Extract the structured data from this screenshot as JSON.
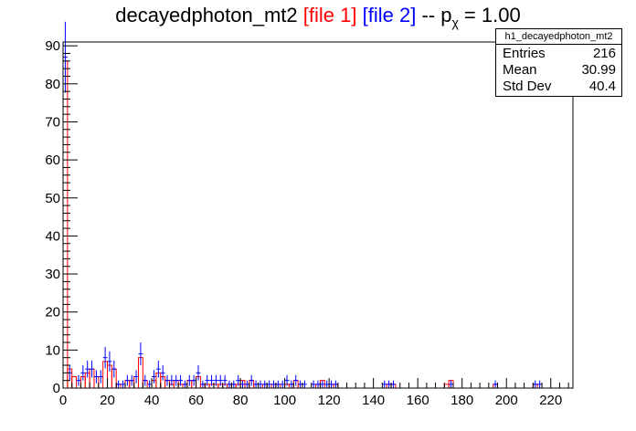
{
  "title": {
    "name": "decayedphoton_mt2",
    "file1": "[file 1]",
    "file2": "[file 2]",
    "tail_prefix": "-- p",
    "tail_sub": "χ",
    "tail_suffix": "= 1.00"
  },
  "stats": {
    "header": "h1_decayedphoton_mt2",
    "rows": [
      {
        "label": "Entries",
        "value": "216"
      },
      {
        "label": "Mean",
        "value": "30.99"
      },
      {
        "label": "Std Dev",
        "value": "40.4"
      }
    ]
  },
  "colors": {
    "file1": "#ff0000",
    "file2": "#0000ff",
    "axis": "#000000"
  },
  "chart_data": {
    "type": "bar",
    "title": "decayedphoton_mt2 [file 1] [file 2] -- pχ = 1.00",
    "xlim": [
      0,
      230
    ],
    "ylim": [
      0,
      91
    ],
    "x_ticks": [
      "0",
      "20",
      "40",
      "60",
      "80",
      "100",
      "120",
      "140",
      "160",
      "180",
      "200",
      "220"
    ],
    "y_ticks": [
      "0",
      "10",
      "20",
      "30",
      "40",
      "50",
      "60",
      "70",
      "80",
      "90"
    ],
    "grid": false,
    "bin_width": 2,
    "series": [
      {
        "name": "[file 1]",
        "draw": "hist",
        "color": "#ff0000",
        "x": [
          1,
          3,
          5,
          9,
          11,
          13,
          15,
          19,
          21,
          23,
          25,
          29,
          31,
          33,
          35,
          37,
          41,
          43,
          45,
          47,
          49,
          51,
          53,
          55,
          57,
          59,
          61,
          63,
          65,
          67,
          69,
          71,
          73,
          75,
          77,
          79,
          81,
          83,
          85,
          87,
          91,
          95,
          97,
          101,
          103,
          105,
          107,
          115,
          117,
          121,
          123,
          147,
          149,
          173,
          175,
          195,
          213
        ],
        "values": [
          86,
          5,
          3,
          3,
          4,
          5,
          3,
          7,
          6,
          5,
          1,
          2,
          2,
          3,
          8,
          2,
          2,
          4,
          3,
          2,
          1,
          2,
          1,
          1,
          2,
          2,
          3,
          1,
          1,
          1,
          1,
          1,
          1,
          1,
          1,
          1,
          2,
          1,
          2,
          1,
          1,
          1,
          1,
          1,
          1,
          2,
          1,
          1,
          2,
          1,
          1,
          1,
          1,
          1,
          2,
          1,
          1
        ]
      },
      {
        "name": "[file 2]",
        "draw": "errorbars",
        "color": "#0000ff",
        "x": [
          1,
          3,
          5,
          7,
          9,
          11,
          13,
          15,
          17,
          19,
          21,
          23,
          25,
          27,
          29,
          31,
          33,
          35,
          37,
          39,
          41,
          43,
          45,
          47,
          49,
          51,
          53,
          55,
          57,
          59,
          61,
          63,
          65,
          67,
          69,
          71,
          73,
          75,
          77,
          79,
          81,
          83,
          85,
          87,
          89,
          91,
          93,
          95,
          97,
          99,
          101,
          103,
          105,
          107,
          109,
          113,
          115,
          117,
          119,
          121,
          123,
          131,
          135,
          139,
          145,
          147,
          149,
          155,
          165,
          175,
          185,
          195,
          205,
          213,
          215,
          223
        ],
        "values": [
          87,
          4,
          0,
          2,
          4,
          5,
          5,
          3,
          3,
          8,
          7,
          5,
          1,
          1,
          2,
          2,
          3,
          9,
          2,
          1,
          3,
          5,
          4,
          2,
          2,
          2,
          2,
          1,
          2,
          2,
          4,
          1,
          2,
          2,
          2,
          2,
          2,
          1,
          1,
          2,
          1,
          1,
          2,
          1,
          1,
          1,
          1,
          1,
          1,
          1,
          2,
          1,
          2,
          1,
          1,
          1,
          1,
          1,
          1,
          1,
          1,
          0,
          0,
          0,
          1,
          1,
          1,
          0,
          0,
          1,
          0,
          1,
          0,
          1,
          1,
          0
        ]
      }
    ]
  }
}
